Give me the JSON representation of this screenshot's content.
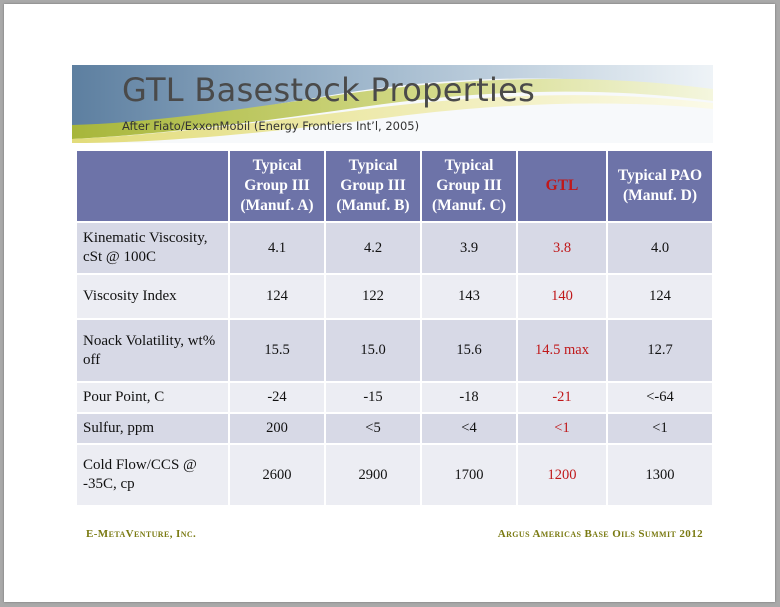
{
  "title": "GTL Basestock Properties",
  "subtitle": "After Fiato/ExxonMobil (Energy Frontiers Int’l, 2005)",
  "table": {
    "headers": [
      "",
      "Typical Group III (Manuf. A)",
      "Typical Group III (Manuf. B)",
      "Typical Group III (Manuf. C)",
      "GTL",
      "Typical PAO (Manuf. D)"
    ],
    "rows": [
      {
        "label": "Kinematic Viscosity, cSt @ 100C",
        "values": [
          "4.1",
          "4.2",
          "3.9",
          "3.8",
          "4.0"
        ]
      },
      {
        "label": "Viscosity Index",
        "values": [
          "124",
          "122",
          "143",
          "140",
          "124"
        ]
      },
      {
        "label": "Noack Volatility, wt% off",
        "values": [
          "15.5",
          "15.0",
          "15.6",
          "14.5 max",
          "12.7"
        ]
      },
      {
        "label": "Pour Point, C",
        "values": [
          "-24",
          "-15",
          "-18",
          "-21",
          "<-64"
        ]
      },
      {
        "label": "Sulfur, ppm",
        "values": [
          "200",
          "<5",
          "<4",
          "<1",
          "<1"
        ]
      },
      {
        "label": "Cold Flow/CCS @ -35C, cp",
        "values": [
          "2600",
          "2900",
          "1700",
          "1200",
          "1300"
        ]
      }
    ]
  },
  "footer": {
    "left": "E-MetaVenture, Inc.",
    "right": "Argus Americas Base Oils Summit 2012"
  },
  "colors": {
    "header_bg": "#6d73a8",
    "highlight": "#c0181a",
    "row_dark": "#d7d9e6",
    "row_light": "#ecedf3",
    "footer_text": "#7a7a12"
  }
}
